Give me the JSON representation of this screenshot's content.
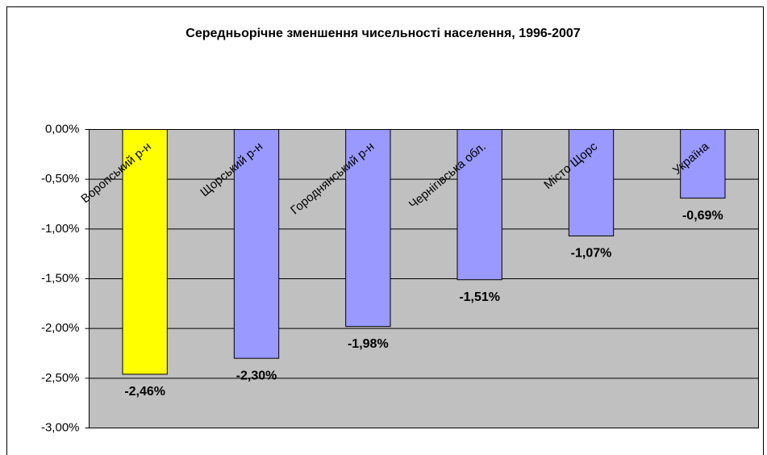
{
  "chart_data": {
    "type": "bar",
    "title": "Середньорічне зменшення чисельності населення, 1996-2007",
    "categories": [
      "Воропський р-н",
      "Щорський р-н",
      "Городнянський р-н",
      "Чернігівська обл.",
      "Місто Щорс",
      "Україна"
    ],
    "values": [
      -2.46,
      -2.3,
      -1.98,
      -1.51,
      -1.07,
      -0.69
    ],
    "value_labels": [
      "-2,46%",
      "-2,30%",
      "-1,98%",
      "-1,51%",
      "-1,07%",
      "-0,69%"
    ],
    "colors": [
      "#ffff00",
      "#9999ff",
      "#9999ff",
      "#9999ff",
      "#9999ff",
      "#9999ff"
    ],
    "ylim": [
      -3,
      0
    ],
    "yticks": [
      {
        "value": 0,
        "label": "0,00%"
      },
      {
        "value": -0.5,
        "label": "-0,50%"
      },
      {
        "value": -1,
        "label": "-1,00%"
      },
      {
        "value": -1.5,
        "label": "-1,50%"
      },
      {
        "value": -2,
        "label": "-2,00%"
      },
      {
        "value": -2.5,
        "label": "-2,50%"
      },
      {
        "value": -3,
        "label": "-3,00%"
      }
    ],
    "grid": true
  }
}
